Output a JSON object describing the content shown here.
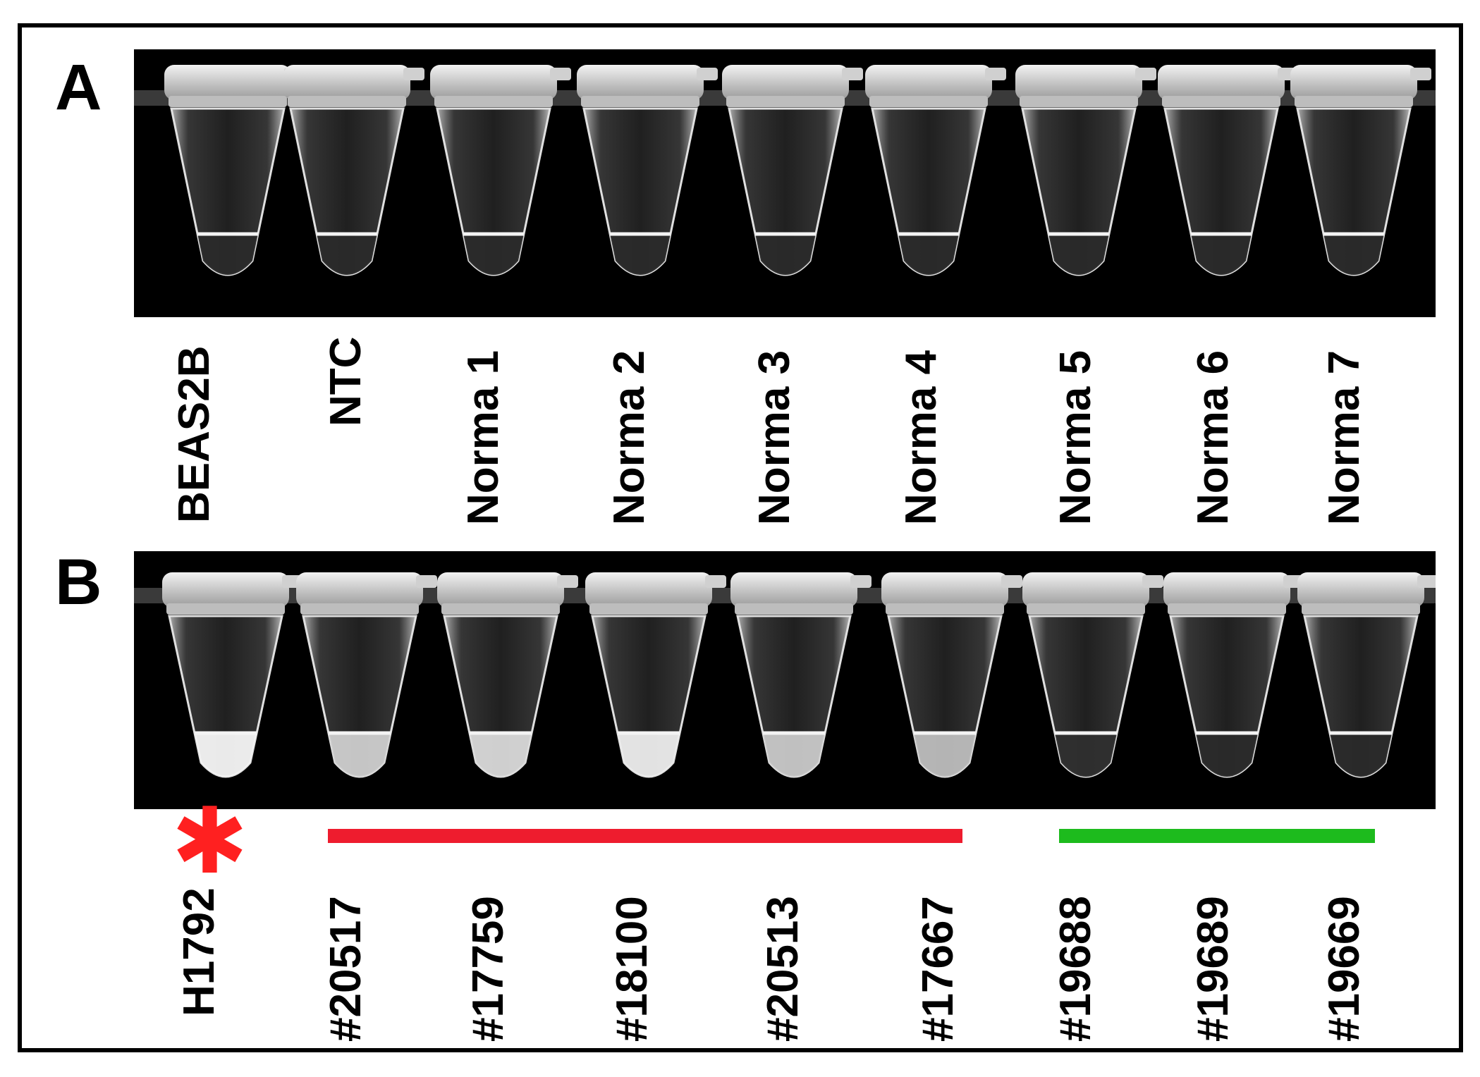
{
  "panels": {
    "a": {
      "letter": "A",
      "labels": [
        "BEAS2B",
        "NTC",
        "Norma 1",
        "Norma 2",
        "Norma 3",
        "Norma 4",
        "Norma 5",
        "Norma 6",
        "Norma 7"
      ]
    },
    "b": {
      "letter": "B",
      "labels": [
        "H1792",
        "#20517",
        "#17759",
        "#18100",
        "#20513",
        "#17667",
        "#19688",
        "#19689",
        "#19669"
      ],
      "marker_symbol": "✱",
      "colors": {
        "marker": "#ff2020",
        "positive_group_bar": "#ee1c2e",
        "negative_group_bar": "#1dbb1d"
      }
    }
  }
}
